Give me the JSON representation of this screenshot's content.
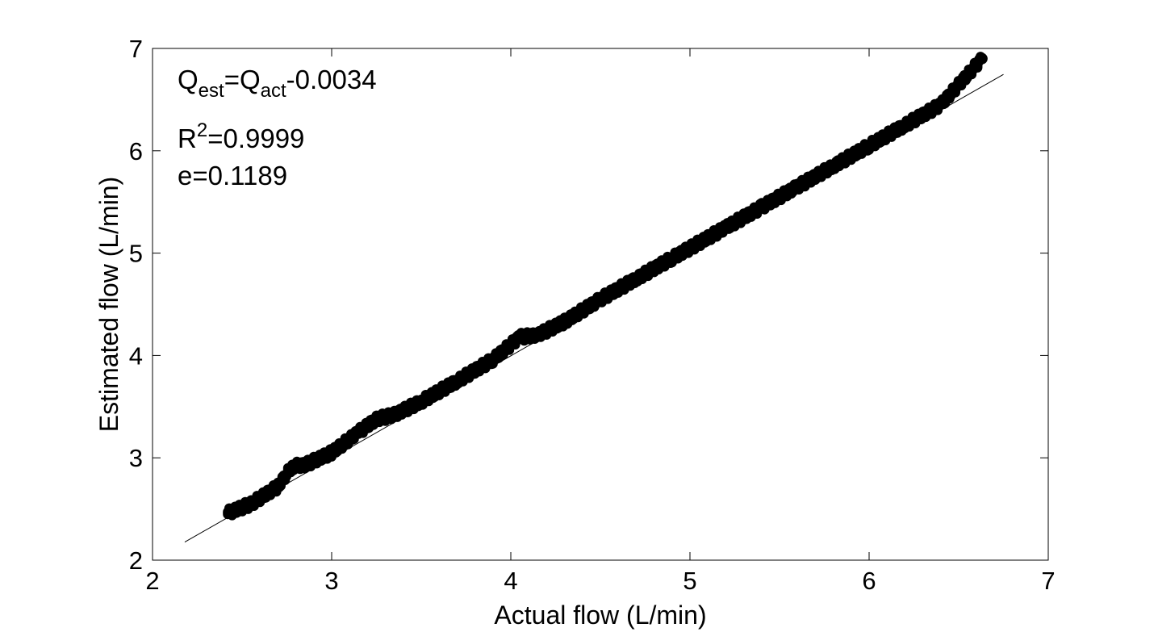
{
  "chart_data": {
    "type": "scatter",
    "xlabel": "Actual flow (L/min)",
    "ylabel": "Estimated flow (L/min)",
    "xlim": [
      2,
      7
    ],
    "ylim": [
      2,
      7
    ],
    "xticks": [
      "2",
      "3",
      "4",
      "5",
      "6",
      "7"
    ],
    "yticks": [
      "2",
      "3",
      "4",
      "5",
      "6",
      "7"
    ],
    "grid": false,
    "annotations": {
      "eq_Q1": "Q",
      "eq_sub1": "est",
      "eq_mid": "=Q",
      "eq_sub2": "act",
      "eq_tail": "-0.0034",
      "r2_R": "R",
      "r2_sup": "2",
      "r2_val": "=0.9999",
      "err": "e=0.1189"
    },
    "fit_line": {
      "slope": 1,
      "intercept": -0.0034,
      "x_range": [
        2.18,
        6.75
      ]
    },
    "series": [
      {
        "marker": "filled-circle",
        "color": "#000000",
        "x_range": [
          2.42,
          6.63
        ],
        "y_offset_jitter": 0.03,
        "points": [
          [
            2.42,
            2.46
          ],
          [
            2.55,
            2.55
          ],
          [
            2.7,
            2.72
          ],
          [
            2.78,
            2.92
          ],
          [
            2.85,
            2.93
          ],
          [
            3.0,
            3.05
          ],
          [
            3.15,
            3.25
          ],
          [
            3.25,
            3.38
          ],
          [
            3.35,
            3.42
          ],
          [
            3.5,
            3.55
          ],
          [
            3.7,
            3.75
          ],
          [
            3.9,
            3.96
          ],
          [
            4.05,
            4.18
          ],
          [
            4.15,
            4.2
          ],
          [
            4.3,
            4.33
          ],
          [
            4.5,
            4.55
          ],
          [
            4.7,
            4.75
          ],
          [
            4.9,
            4.95
          ],
          [
            5.0,
            5.05
          ],
          [
            5.2,
            5.25
          ],
          [
            5.4,
            5.45
          ],
          [
            5.6,
            5.65
          ],
          [
            5.8,
            5.85
          ],
          [
            6.0,
            6.05
          ],
          [
            6.2,
            6.25
          ],
          [
            6.4,
            6.45
          ],
          [
            6.63,
            6.9
          ]
        ]
      }
    ]
  }
}
